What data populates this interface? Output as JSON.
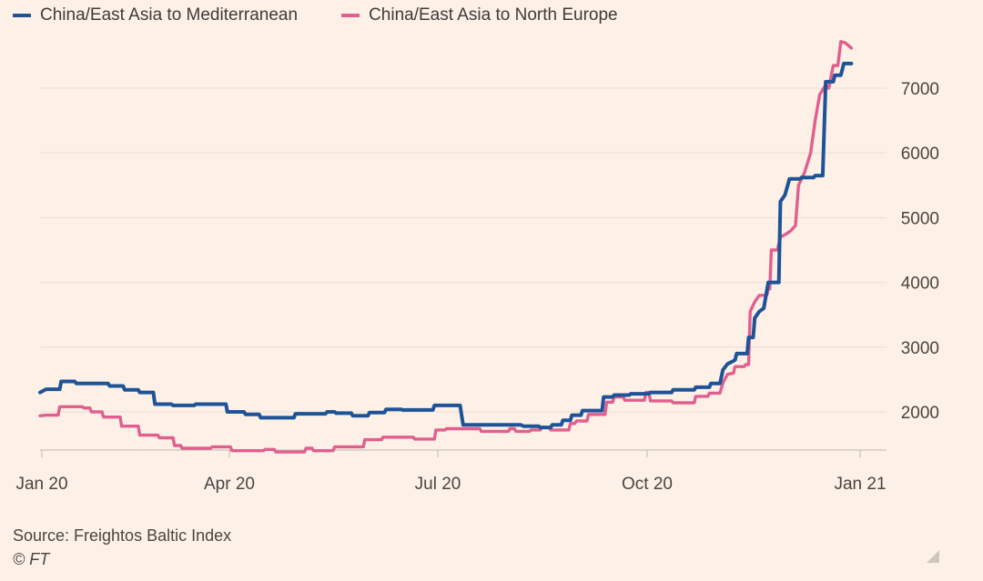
{
  "chart_data": {
    "type": "line",
    "title": "",
    "xlabel": "",
    "ylabel": "",
    "x_ticks": [
      "Jan 20",
      "Apr 20",
      "Jul 20",
      "Oct 20",
      "Jan 21"
    ],
    "y_ticks": [
      2000,
      3000,
      4000,
      5000,
      6000,
      7000
    ],
    "ylim": [
      1350,
      7800
    ],
    "xlim": [
      0,
      56
    ],
    "x_unit": "week index (week 0 = Jan 20)",
    "grid": true,
    "legend_position": "top-left",
    "series": [
      {
        "name": "China/East Asia to Mediterranean",
        "color": "#1e5397",
        "points": [
          [
            0,
            2300
          ],
          [
            0.4,
            2350
          ],
          [
            1.3,
            2350
          ],
          [
            1.4,
            2470
          ],
          [
            2.3,
            2470
          ],
          [
            2.4,
            2440
          ],
          [
            4.5,
            2440
          ],
          [
            4.6,
            2400
          ],
          [
            5.5,
            2400
          ],
          [
            5.6,
            2340
          ],
          [
            6.5,
            2340
          ],
          [
            6.6,
            2300
          ],
          [
            7.5,
            2300
          ],
          [
            7.6,
            2120
          ],
          [
            8.7,
            2120
          ],
          [
            8.8,
            2100
          ],
          [
            10.2,
            2100
          ],
          [
            10.3,
            2120
          ],
          [
            12.3,
            2120
          ],
          [
            12.4,
            2000
          ],
          [
            13.5,
            2000
          ],
          [
            13.6,
            1960
          ],
          [
            14.5,
            1960
          ],
          [
            14.6,
            1910
          ],
          [
            16.8,
            1910
          ],
          [
            16.9,
            1970
          ],
          [
            18.9,
            1970
          ],
          [
            19.0,
            2000
          ],
          [
            19.5,
            2000
          ],
          [
            19.6,
            1980
          ],
          [
            20.6,
            1980
          ],
          [
            20.7,
            1940
          ],
          [
            21.7,
            1940
          ],
          [
            21.8,
            1990
          ],
          [
            22.8,
            1990
          ],
          [
            22.9,
            2040
          ],
          [
            23.9,
            2040
          ],
          [
            24.0,
            2030
          ],
          [
            26.0,
            2030
          ],
          [
            26.1,
            2100
          ],
          [
            27.8,
            2100
          ],
          [
            28.0,
            1800
          ],
          [
            31.8,
            1800
          ],
          [
            32.0,
            1780
          ],
          [
            33.0,
            1780
          ],
          [
            33.1,
            1760
          ],
          [
            33.8,
            1760
          ],
          [
            33.9,
            1800
          ],
          [
            34.5,
            1800
          ],
          [
            34.6,
            1870
          ],
          [
            35.1,
            1870
          ],
          [
            35.2,
            1950
          ],
          [
            35.8,
            1950
          ],
          [
            35.9,
            2020
          ],
          [
            37.2,
            2020
          ],
          [
            37.3,
            2230
          ],
          [
            37.9,
            2230
          ],
          [
            38.0,
            2260
          ],
          [
            39.0,
            2260
          ],
          [
            39.1,
            2280
          ],
          [
            40.3,
            2280
          ],
          [
            40.4,
            2300
          ],
          [
            41.8,
            2300
          ],
          [
            41.9,
            2340
          ],
          [
            43.3,
            2340
          ],
          [
            43.4,
            2380
          ],
          [
            44.3,
            2380
          ],
          [
            44.4,
            2440
          ],
          [
            45.0,
            2440
          ],
          [
            45.2,
            2650
          ],
          [
            45.5,
            2740
          ],
          [
            46.0,
            2800
          ],
          [
            46.1,
            2900
          ],
          [
            46.8,
            2900
          ],
          [
            46.9,
            3150
          ],
          [
            47.2,
            3150
          ],
          [
            47.3,
            3450
          ],
          [
            47.6,
            3550
          ],
          [
            47.9,
            3600
          ],
          [
            48.2,
            4000
          ],
          [
            48.9,
            4000
          ],
          [
            49.0,
            5250
          ],
          [
            49.3,
            5350
          ],
          [
            49.6,
            5600
          ],
          [
            50.3,
            5600
          ],
          [
            50.4,
            5620
          ],
          [
            51.2,
            5620
          ],
          [
            51.3,
            5650
          ],
          [
            51.8,
            5650
          ],
          [
            52.0,
            7100
          ],
          [
            52.5,
            7100
          ],
          [
            52.6,
            7200
          ],
          [
            53.0,
            7200
          ],
          [
            53.2,
            7380
          ],
          [
            53.7,
            7380
          ]
        ]
      },
      {
        "name": "China/East Asia to North Europe",
        "color": "#e15f8e",
        "points": [
          [
            0,
            1940
          ],
          [
            0.4,
            1950
          ],
          [
            1.2,
            1950
          ],
          [
            1.3,
            2080
          ],
          [
            2.8,
            2080
          ],
          [
            2.9,
            2060
          ],
          [
            3.3,
            2060
          ],
          [
            3.4,
            2000
          ],
          [
            4.1,
            2000
          ],
          [
            4.2,
            1920
          ],
          [
            5.3,
            1920
          ],
          [
            5.4,
            1780
          ],
          [
            6.5,
            1780
          ],
          [
            6.6,
            1640
          ],
          [
            7.8,
            1640
          ],
          [
            7.9,
            1600
          ],
          [
            8.8,
            1600
          ],
          [
            8.9,
            1480
          ],
          [
            9.3,
            1480
          ],
          [
            9.4,
            1440
          ],
          [
            11.3,
            1440
          ],
          [
            11.4,
            1460
          ],
          [
            12.6,
            1460
          ],
          [
            12.7,
            1400
          ],
          [
            14.8,
            1400
          ],
          [
            14.9,
            1420
          ],
          [
            15.5,
            1420
          ],
          [
            15.6,
            1380
          ],
          [
            17.5,
            1380
          ],
          [
            17.6,
            1440
          ],
          [
            18.0,
            1440
          ],
          [
            18.1,
            1400
          ],
          [
            19.4,
            1400
          ],
          [
            19.5,
            1460
          ],
          [
            21.4,
            1460
          ],
          [
            21.5,
            1570
          ],
          [
            22.6,
            1570
          ],
          [
            22.7,
            1610
          ],
          [
            24.7,
            1610
          ],
          [
            24.8,
            1580
          ],
          [
            26.1,
            1580
          ],
          [
            26.2,
            1720
          ],
          [
            26.8,
            1720
          ],
          [
            26.9,
            1740
          ],
          [
            29.1,
            1740
          ],
          [
            29.2,
            1700
          ],
          [
            31.0,
            1700
          ],
          [
            31.1,
            1740
          ],
          [
            31.4,
            1740
          ],
          [
            31.5,
            1700
          ],
          [
            32.4,
            1700
          ],
          [
            32.5,
            1720
          ],
          [
            33.1,
            1720
          ],
          [
            33.2,
            1760
          ],
          [
            33.7,
            1760
          ],
          [
            33.8,
            1720
          ],
          [
            35.0,
            1720
          ],
          [
            35.1,
            1820
          ],
          [
            35.4,
            1820
          ],
          [
            35.5,
            1860
          ],
          [
            36.2,
            1860
          ],
          [
            36.3,
            1960
          ],
          [
            37.4,
            1960
          ],
          [
            37.5,
            2150
          ],
          [
            37.9,
            2150
          ],
          [
            38.0,
            2230
          ],
          [
            38.6,
            2230
          ],
          [
            38.7,
            2180
          ],
          [
            40.0,
            2180
          ],
          [
            40.1,
            2300
          ],
          [
            40.3,
            2300
          ],
          [
            40.4,
            2170
          ],
          [
            41.8,
            2170
          ],
          [
            41.9,
            2140
          ],
          [
            43.3,
            2140
          ],
          [
            43.4,
            2240
          ],
          [
            44.2,
            2240
          ],
          [
            44.3,
            2290
          ],
          [
            45.0,
            2290
          ],
          [
            45.2,
            2450
          ],
          [
            45.5,
            2580
          ],
          [
            45.9,
            2600
          ],
          [
            46.0,
            2700
          ],
          [
            46.6,
            2700
          ],
          [
            46.7,
            2730
          ],
          [
            46.9,
            2730
          ],
          [
            47.0,
            3550
          ],
          [
            47.3,
            3700
          ],
          [
            47.6,
            3800
          ],
          [
            48.1,
            3800
          ],
          [
            48.2,
            3900
          ],
          [
            48.3,
            3900
          ],
          [
            48.4,
            4500
          ],
          [
            48.8,
            4500
          ],
          [
            49.0,
            4700
          ],
          [
            49.4,
            4750
          ],
          [
            49.7,
            4800
          ],
          [
            50.0,
            4880
          ],
          [
            50.2,
            5500
          ],
          [
            50.6,
            5700
          ],
          [
            51.0,
            6000
          ],
          [
            51.3,
            6500
          ],
          [
            51.6,
            6900
          ],
          [
            52.0,
            7050
          ],
          [
            52.2,
            7000
          ],
          [
            52.5,
            7350
          ],
          [
            52.8,
            7350
          ],
          [
            53.0,
            7720
          ],
          [
            53.3,
            7700
          ],
          [
            53.7,
            7620
          ]
        ]
      }
    ]
  },
  "footer": {
    "source": "Source: Freightos Baltic Index",
    "credit": "© FT"
  }
}
